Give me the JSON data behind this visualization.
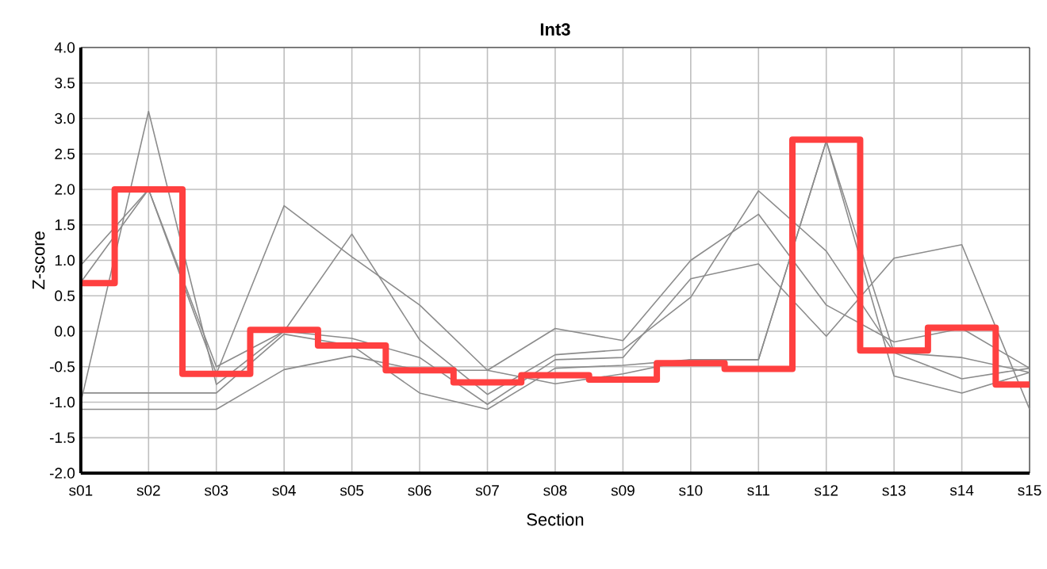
{
  "chart_data": {
    "type": "line",
    "title": "Int3",
    "xlabel": "Section",
    "ylabel": "Z-score",
    "categories": [
      "s01",
      "s02",
      "s03",
      "s04",
      "s05",
      "s06",
      "s07",
      "s08",
      "s09",
      "s10",
      "s11",
      "s12",
      "s13",
      "s14",
      "s15"
    ],
    "ylim": [
      -2,
      4
    ],
    "yticks": [
      {
        "value": -2,
        "label": "-2.0"
      },
      {
        "value": -1.5,
        "label": "-1.5"
      },
      {
        "value": -1,
        "label": "-1.0"
      },
      {
        "value": -0.5,
        "label": "-0.5"
      },
      {
        "value": 0,
        "label": "0.0"
      },
      {
        "value": 0.5,
        "label": "0.5"
      },
      {
        "value": 1,
        "label": "1.0"
      },
      {
        "value": 1.5,
        "label": "1.5"
      },
      {
        "value": 2,
        "label": "2.0"
      },
      {
        "value": 2.5,
        "label": "2.5"
      },
      {
        "value": 3,
        "label": "3.0"
      },
      {
        "value": 3.5,
        "label": "3.5"
      },
      {
        "value": 4,
        "label": "4.0"
      }
    ],
    "grid": true,
    "marker": "none",
    "series": [
      {
        "type": "line",
        "color": "#8c8c8c",
        "values": [
          0.93,
          2.0,
          -0.6,
          1.77,
          1.05,
          0.37,
          -0.55,
          0.04,
          -0.13,
          1.0,
          1.65,
          0.37,
          -0.15,
          0.04,
          -0.52
        ]
      },
      {
        "type": "line",
        "color": "#8c8c8c",
        "values": [
          0.69,
          2.0,
          -0.5,
          0.0,
          1.37,
          -0.12,
          -0.89,
          -0.33,
          -0.26,
          0.48,
          1.98,
          1.13,
          -0.3,
          -0.37,
          -0.58
        ]
      },
      {
        "type": "line",
        "color": "#8c8c8c",
        "values": [
          -1.0,
          3.1,
          -0.75,
          0.0,
          -0.1,
          -0.37,
          -1.03,
          -0.4,
          -0.37,
          0.74,
          0.95,
          -0.07,
          1.03,
          1.22,
          -1.1
        ]
      },
      {
        "type": "line",
        "color": "#8c8c8c",
        "values": [
          -0.87,
          -0.87,
          -0.87,
          -0.04,
          -0.2,
          -0.87,
          -1.1,
          -0.52,
          -0.48,
          -0.4,
          -0.4,
          2.68,
          -0.3,
          -0.67,
          -0.52
        ]
      },
      {
        "type": "line",
        "color": "#8c8c8c",
        "values": [
          -1.1,
          -1.1,
          -1.1,
          -0.54,
          -0.35,
          -0.55,
          -0.55,
          -0.74,
          -0.6,
          -0.4,
          -0.4,
          2.68,
          -0.63,
          -0.87,
          -0.58
        ]
      },
      {
        "type": "step",
        "color": "#ff4040",
        "values": [
          0.68,
          2.0,
          -0.6,
          0.02,
          -0.2,
          -0.55,
          -0.72,
          -0.62,
          -0.68,
          -0.45,
          -0.53,
          2.7,
          -0.27,
          0.05,
          -0.75
        ]
      }
    ]
  }
}
